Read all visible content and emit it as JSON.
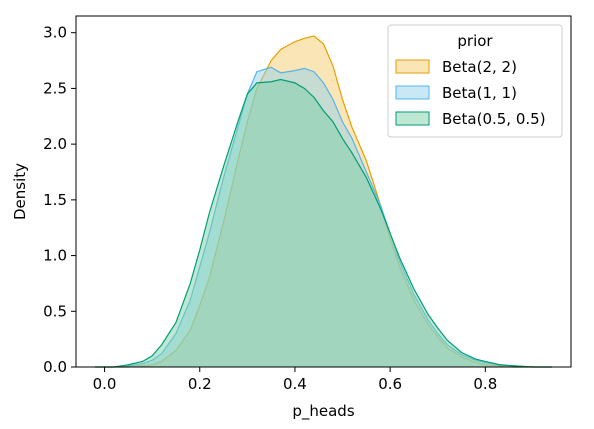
{
  "chart_data": {
    "type": "area",
    "title": "",
    "xlabel": "p_heads",
    "ylabel": "Density",
    "xlim": [
      -0.06,
      0.98
    ],
    "ylim": [
      0,
      3.15
    ],
    "xticks": [
      0.0,
      0.2,
      0.4,
      0.6,
      0.8
    ],
    "xtick_labels": [
      "0.0",
      "0.2",
      "0.4",
      "0.6",
      "0.8"
    ],
    "yticks": [
      0.0,
      0.5,
      1.0,
      1.5,
      2.0,
      2.5,
      3.0
    ],
    "ytick_labels": [
      "0.0",
      "0.5",
      "1.0",
      "1.5",
      "2.0",
      "2.5",
      "3.0"
    ],
    "grid": false,
    "legend": {
      "title": "prior",
      "placement": "top-right"
    },
    "x": [
      -0.02,
      0.02,
      0.05,
      0.08,
      0.1,
      0.12,
      0.15,
      0.18,
      0.2,
      0.22,
      0.25,
      0.28,
      0.3,
      0.32,
      0.35,
      0.37,
      0.4,
      0.42,
      0.44,
      0.46,
      0.48,
      0.5,
      0.52,
      0.55,
      0.58,
      0.6,
      0.62,
      0.65,
      0.68,
      0.7,
      0.72,
      0.75,
      0.78,
      0.8,
      0.83,
      0.86,
      0.9,
      0.94
    ],
    "series": [
      {
        "name": "Beta(2, 2)",
        "fill": "#f5cc70",
        "stroke": "#e69f00",
        "values": [
          0.0,
          0.0,
          0.0,
          0.01,
          0.02,
          0.05,
          0.15,
          0.33,
          0.55,
          0.8,
          1.3,
          1.85,
          2.2,
          2.5,
          2.75,
          2.85,
          2.92,
          2.95,
          2.97,
          2.9,
          2.7,
          2.4,
          2.15,
          1.85,
          1.45,
          1.15,
          0.9,
          0.6,
          0.38,
          0.27,
          0.17,
          0.09,
          0.04,
          0.02,
          0.01,
          0.0,
          0.0,
          0.0
        ]
      },
      {
        "name": "Beta(1, 1)",
        "fill": "#92d1ee",
        "stroke": "#56b4e9",
        "values": [
          0.0,
          0.0,
          0.01,
          0.03,
          0.06,
          0.12,
          0.3,
          0.6,
          0.9,
          1.2,
          1.7,
          2.15,
          2.45,
          2.65,
          2.69,
          2.64,
          2.66,
          2.68,
          2.65,
          2.55,
          2.4,
          2.2,
          2.05,
          1.75,
          1.45,
          1.2,
          0.95,
          0.65,
          0.42,
          0.3,
          0.2,
          0.11,
          0.06,
          0.04,
          0.02,
          0.01,
          0.0,
          0.0
        ]
      },
      {
        "name": "Beta(0.5, 0.5)",
        "fill": "#7dd0a9",
        "stroke": "#009e73",
        "values": [
          0.0,
          0.0,
          0.02,
          0.05,
          0.1,
          0.2,
          0.4,
          0.75,
          1.05,
          1.38,
          1.8,
          2.2,
          2.45,
          2.55,
          2.56,
          2.58,
          2.55,
          2.5,
          2.42,
          2.3,
          2.2,
          2.05,
          1.92,
          1.7,
          1.42,
          1.2,
          0.98,
          0.7,
          0.47,
          0.35,
          0.24,
          0.13,
          0.07,
          0.05,
          0.02,
          0.01,
          0.0,
          0.0
        ]
      }
    ]
  }
}
